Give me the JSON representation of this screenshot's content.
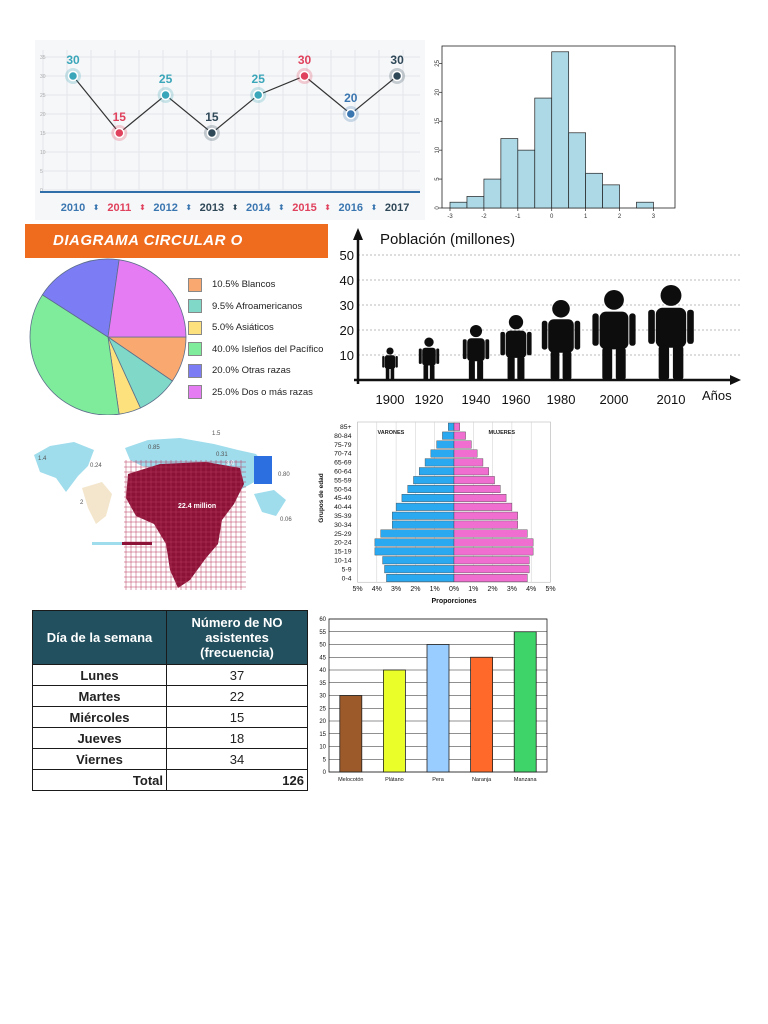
{
  "line_chart": {
    "chart_data": {
      "type": "line",
      "categories": [
        "2010",
        "2011",
        "2012",
        "2013",
        "2014",
        "2015",
        "2016",
        "2017"
      ],
      "values": [
        30,
        15,
        25,
        15,
        25,
        30,
        20,
        30
      ],
      "data_labels": [
        "30",
        "15",
        "25",
        "15",
        "25",
        "30",
        "20",
        "30"
      ],
      "ylim": [
        0,
        35
      ],
      "y_ticks": [
        "0",
        "5",
        "10",
        "15",
        "20",
        "25",
        "30",
        "35"
      ],
      "grid": true
    },
    "colors": {
      "teal": "#3aa6b9",
      "red": "#e0415c",
      "blue": "#3a76b0",
      "navy": "#2f4858",
      "axis": "#2f6ea8"
    }
  },
  "histogram": {
    "chart_data": {
      "type": "bar",
      "bin_edges": [
        -3,
        -2.5,
        -2,
        -1.5,
        -1,
        -0.5,
        0,
        0.5,
        1,
        1.5,
        2,
        2.5,
        3
      ],
      "values": [
        1,
        2,
        5,
        12,
        10,
        19,
        27,
        13,
        6,
        4,
        0,
        1
      ],
      "x_ticks": [
        "-3",
        "-2",
        "-1",
        "0",
        "1",
        "2",
        "3"
      ],
      "y_ticks": [
        "0",
        "5",
        "10",
        "15",
        "20",
        "25"
      ],
      "ylim": [
        0,
        28
      ]
    },
    "colors": {
      "bar": "#add8e6"
    }
  },
  "pie_chart": {
    "banner": "DIAGRAMA CIRCULAR O SECTORES",
    "chart_data": {
      "type": "pie",
      "labels": [
        "Blancos",
        "Afroamericanos",
        "Asiáticos",
        "Isleños del Pacífico",
        "Otras razas",
        "Dos o más razas"
      ],
      "values": [
        10.5,
        9.5,
        5.0,
        40.0,
        20.0,
        25.0
      ],
      "legend": [
        "10.5% Blancos",
        "9.5% Afroamericanos",
        "5.0% Asiáticos",
        "40.0% Isleños del Pacífico",
        "20.0% Otras razas",
        "25.0% Dos o más razas"
      ]
    },
    "colors": [
      "#f9a870",
      "#7fd8c8",
      "#fde17c",
      "#7fec9c",
      "#7c7cf4",
      "#e57cf4"
    ]
  },
  "population": {
    "chart_data": {
      "type": "bar",
      "title": "Población (millones)",
      "xlabel": "Años",
      "categories": [
        "1900",
        "1920",
        "1940",
        "1960",
        "1980",
        "2000",
        "2010"
      ],
      "values": [
        13,
        17,
        22,
        26,
        32,
        36,
        38
      ],
      "y_ticks": [
        "10",
        "20",
        "30",
        "40",
        "50"
      ],
      "ylim": [
        0,
        55
      ]
    }
  },
  "map": {
    "labels": [
      "1.5",
      "0.85",
      "0.31",
      "3.0",
      "1.4",
      "0.24",
      "0.80",
      "2",
      "22.4 million",
      "0.06"
    ]
  },
  "pyramid": {
    "chart_data": {
      "type": "bar",
      "categories": [
        "85+",
        "80-84",
        "75-79",
        "70-74",
        "65-69",
        "60-64",
        "55-59",
        "50-54",
        "45-49",
        "40-44",
        "35-39",
        "30-34",
        "25-29",
        "20-24",
        "15-19",
        "10-14",
        "5-9",
        "0-4"
      ],
      "male": [
        0.3,
        0.6,
        0.9,
        1.2,
        1.5,
        1.8,
        2.1,
        2.4,
        2.7,
        3.0,
        3.2,
        3.2,
        3.8,
        4.1,
        4.1,
        3.7,
        3.6,
        3.5
      ],
      "female": [
        0.3,
        0.6,
        0.9,
        1.2,
        1.5,
        1.8,
        2.1,
        2.4,
        2.7,
        3.0,
        3.3,
        3.3,
        3.8,
        4.1,
        4.1,
        3.9,
        3.9,
        3.8
      ],
      "x_ticks": [
        "5%",
        "4%",
        "3%",
        "2%",
        "1%",
        "0%",
        "1%",
        "2%",
        "3%",
        "4%",
        "5%"
      ],
      "xlabel": "Proporciones",
      "ylabel": "Grupos de edad",
      "left_label": "VARONES",
      "right_label": "MUJERES"
    },
    "colors": {
      "male": "#2aa8f0",
      "female": "#f06ed0"
    }
  },
  "table": {
    "headers": [
      "Día de la semana",
      "Número de NO asistentes (frecuencia)"
    ],
    "rows": [
      {
        "day": "Lunes",
        "value": "37"
      },
      {
        "day": "Martes",
        "value": "22"
      },
      {
        "day": "Miércoles",
        "value": "15"
      },
      {
        "day": "Jueves",
        "value": "18"
      },
      {
        "day": "Viernes",
        "value": "34"
      }
    ],
    "total_label": "Total",
    "total_value": "126"
  },
  "fruit_bars": {
    "chart_data": {
      "type": "bar",
      "categories": [
        "Melocotón",
        "Plátano",
        "Pera",
        "Naranja",
        "Manzana"
      ],
      "values": [
        30,
        40,
        50,
        45,
        55
      ],
      "y_ticks": [
        "0",
        "5",
        "10",
        "15",
        "20",
        "25",
        "30",
        "35",
        "40",
        "45",
        "50",
        "55",
        "60"
      ],
      "ylim": [
        0,
        60
      ]
    },
    "colors": [
      "#9c5a2a",
      "#eaff2a",
      "#99ccff",
      "#ff6a2a",
      "#3ed46a"
    ]
  }
}
